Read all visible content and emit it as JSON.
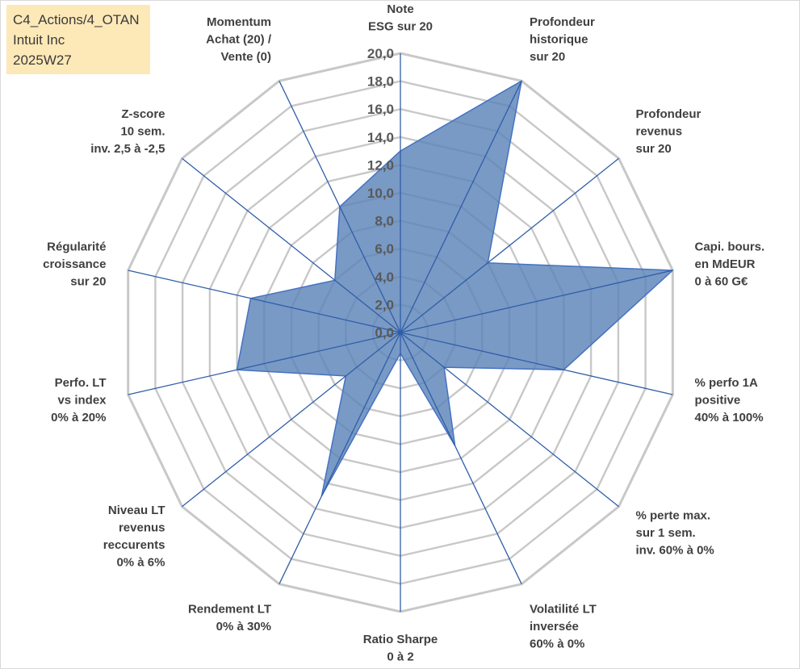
{
  "info_box": {
    "line1": "C4_Actions/4_OTAN",
    "line2": "Intuit Inc",
    "line3": "2025W27"
  },
  "chart_data": {
    "type": "radar",
    "scale": {
      "min": 0,
      "max": 20,
      "step": 2
    },
    "ticks": [
      "0,0",
      "2,0",
      "4,0",
      "6,0",
      "8,0",
      "10,0",
      "12,0",
      "14,0",
      "16,0",
      "18,0",
      "20,0"
    ],
    "axes": [
      {
        "lines": [
          "Note",
          "ESG sur 20"
        ],
        "value": 13.0
      },
      {
        "lines": [
          "Profondeur",
          "historique",
          "sur 20"
        ],
        "value": 20.0
      },
      {
        "lines": [
          "Profondeur",
          "revenus",
          "sur 20"
        ],
        "value": 8.0
      },
      {
        "lines": [
          "Capi. bours.",
          "en MdEUR",
          "0 à 60 G€"
        ],
        "value": 20.0
      },
      {
        "lines": [
          "% perfo 1A",
          "positive",
          "40% à 100%"
        ],
        "value": 12.0
      },
      {
        "lines": [
          "% perte max.",
          "sur 1 sem.",
          "inv. 60% à 0%"
        ],
        "value": 4.0
      },
      {
        "lines": [
          "Volatilité LT",
          "inversée",
          "60% à 0%"
        ],
        "value": 9.0
      },
      {
        "lines": [
          "Ratio Sharpe",
          "0 à 2"
        ],
        "value": 1.5
      },
      {
        "lines": [
          "Rendement LT",
          "0% à 30%"
        ],
        "value": 13.0
      },
      {
        "lines": [
          "Niveau LT",
          "revenus",
          "reccurents",
          "0% à 6%"
        ],
        "value": 5.0
      },
      {
        "lines": [
          "Perfo. LT",
          "vs index",
          "0% à 20%"
        ],
        "value": 12.0
      },
      {
        "lines": [
          "Régularité",
          "croissance",
          "sur 20"
        ],
        "value": 11.0
      },
      {
        "lines": [
          "Z-score",
          "10 sem.",
          "inv. 2,5 à -2,5"
        ],
        "value": 6.0
      },
      {
        "lines": [
          "Momentum",
          "Achat (20) /",
          "Vente (0)"
        ],
        "value": 10.0
      }
    ],
    "colors": {
      "fill": "#5b84b8",
      "fill_opacity": 0.82,
      "stroke": "#4472c4",
      "grid": "#c8c8c8",
      "spoke": "#2f5da8"
    }
  }
}
